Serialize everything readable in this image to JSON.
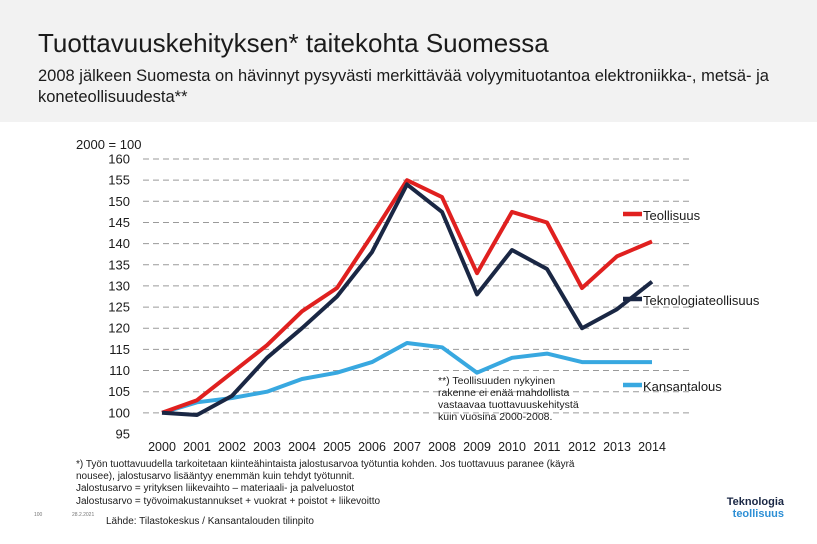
{
  "title": "Tuottavuuskehityksen* taitekohta Suomessa",
  "subtitle": "2008 jälkeen Suomesta on hävinnyt pysyvästi merkittävää volyymituotantoa elektroniikka-, metsä- ja koneteollisuudesta**",
  "footnote": {
    "line1": "*) Työn tuottavuudella tarkoitetaan kiinteähintaista jalostusarvoa työtuntia kohden. Jos tuottavuus paranee (käyrä",
    "line2": "nousee), jalostusarvo lisääntyy enemmän kuin tehdyt työtunnit.",
    "line3": "Jalostusarvo = yrityksen liikevaihto – materiaali- ja palveluostot",
    "line4": "Jalostusarvo = työvoimakustannukset + vuokrat + poistot + liikevoitto"
  },
  "source": "Lähde: Tilastokeskus / Kansantalouden tilinpito",
  "page_number": "100",
  "date": "28.2.2021",
  "logo": {
    "line1": "Teknologia",
    "line2": "teollisuus"
  },
  "colors": {
    "teollisuus": "#e0201f",
    "teknologia": "#1a2744",
    "kansantalous": "#38a8e0",
    "grid": "#9a9a9a",
    "header_bg": "#f2f2f2"
  },
  "chart_data": {
    "type": "line",
    "title": "",
    "ylabel": "2000 = 100",
    "xlabel": "",
    "ylim": [
      95,
      160
    ],
    "yticks": [
      95,
      100,
      105,
      110,
      115,
      120,
      125,
      130,
      135,
      140,
      145,
      150,
      155,
      160
    ],
    "categories": [
      "2000",
      "2001",
      "2002",
      "2003",
      "2004",
      "2005",
      "2006",
      "2007",
      "2008",
      "2009",
      "2010",
      "2011",
      "2012",
      "2013",
      "2014"
    ],
    "grid": true,
    "series": [
      {
        "name": "Teollisuus",
        "key": "teollisuus",
        "values": [
          100,
          103,
          109.5,
          116,
          124,
          129.5,
          142,
          155,
          151,
          133,
          147.5,
          145,
          129.5,
          137,
          140.5
        ]
      },
      {
        "name": "Teknologiateollisuus",
        "key": "teknologia",
        "values": [
          100,
          99.5,
          104,
          113,
          120,
          127.5,
          138,
          154,
          147.5,
          128,
          138.5,
          134,
          120,
          124.5,
          131
        ]
      },
      {
        "name": "Kansantalous",
        "key": "kansantalous",
        "values": [
          100,
          102.5,
          103.5,
          105,
          108,
          109.5,
          112,
          116.5,
          115.5,
          109.5,
          113,
          114,
          112,
          112,
          112
        ]
      }
    ],
    "annotation": {
      "line1": "**) Teollisuuden nykyinen",
      "line2": "rakenne ei enää mahdollista",
      "line3": "vastaavaa tuottavuuskehitystä",
      "line4": "kuin vuosina 2000-2008."
    }
  }
}
